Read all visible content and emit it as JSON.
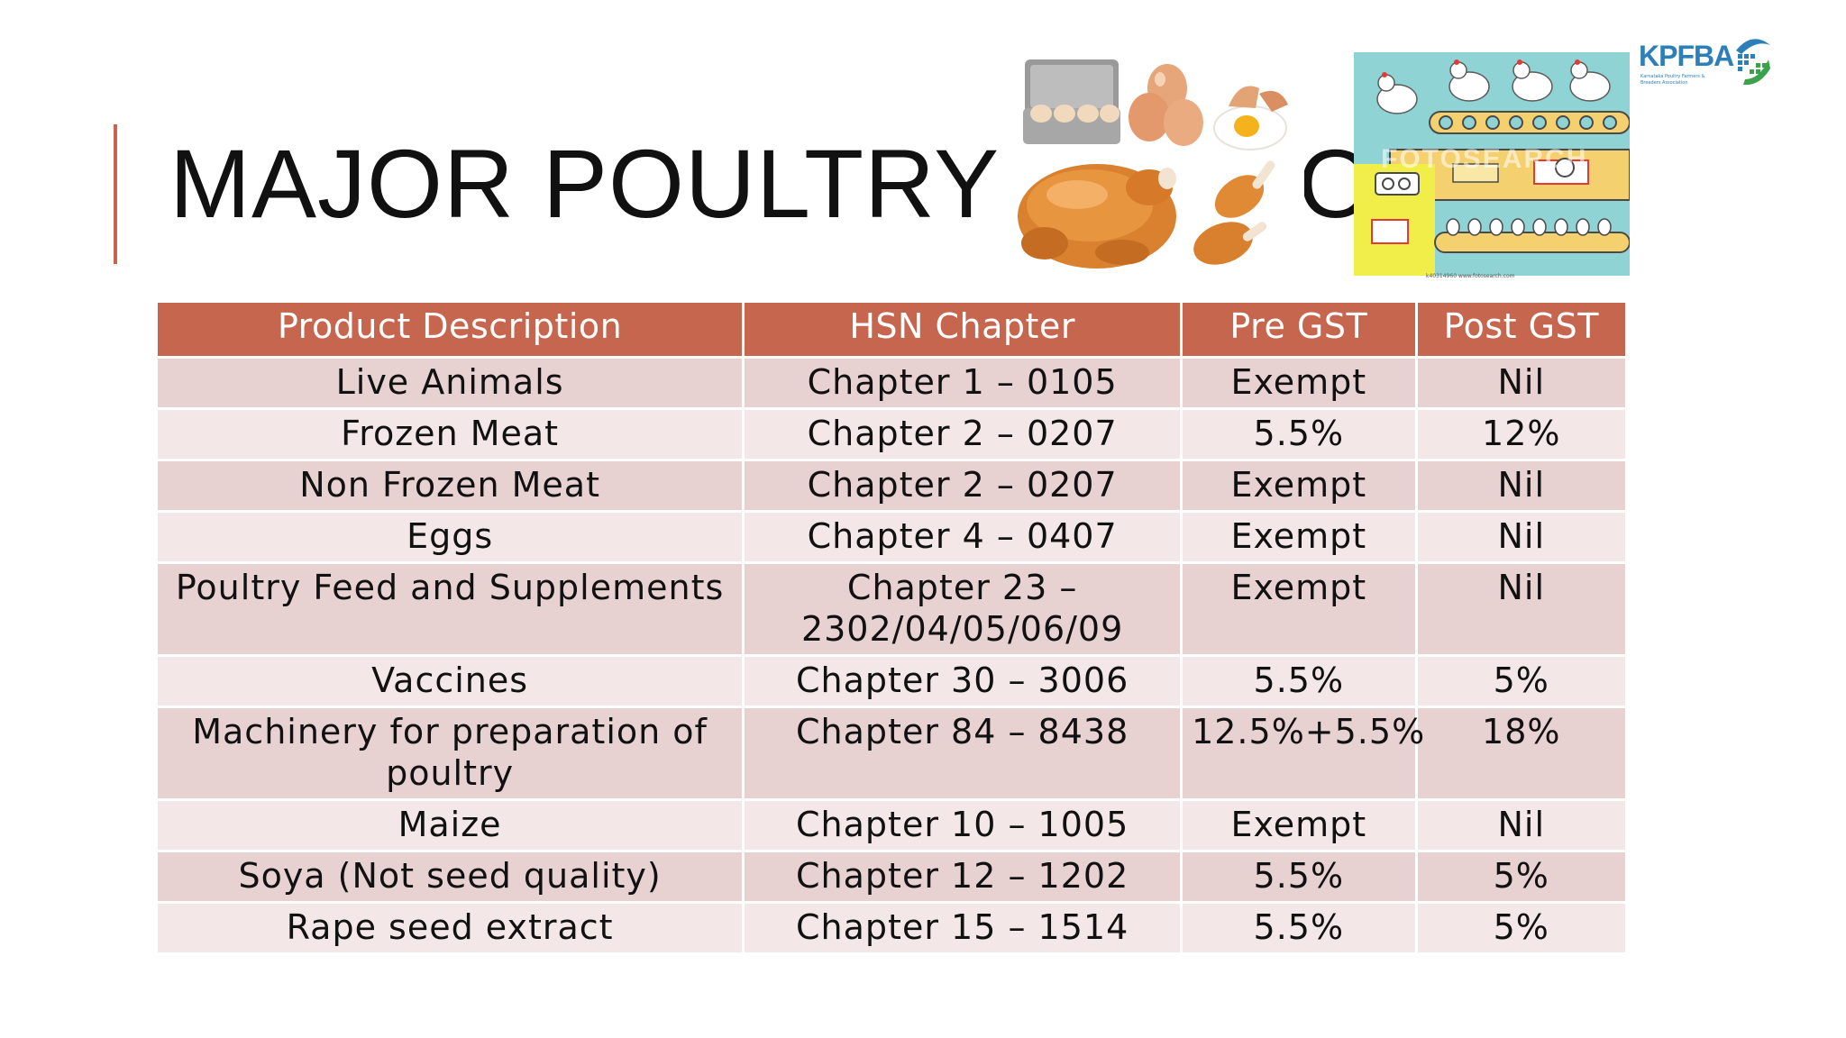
{
  "slide": {
    "title": "MAJOR POULTRY",
    "title_tail": "OU"
  },
  "logo": {
    "name": "KPFBA",
    "subtitle": "Karnataka Poultry Farmers & Breeders Association"
  },
  "factory_image": {
    "watermark": "FOTOSEARCH",
    "caption": "k40314960 www.fotosearch.com"
  },
  "colors": {
    "accent": "#c8654d",
    "header": "#c6664f",
    "row_odd": "#e8d1d1",
    "row_even": "#f3e7e7"
  },
  "table": {
    "headers": [
      "Product Description",
      "HSN Chapter",
      "Pre GST",
      "Post GST"
    ],
    "rows": [
      {
        "description": "Live Animals",
        "hsn": "Chapter 1 – 0105",
        "pre_gst": "Exempt",
        "post_gst": "Nil"
      },
      {
        "description": "Frozen Meat",
        "hsn": "Chapter 2 – 0207",
        "pre_gst": "5.5%",
        "post_gst": "12%"
      },
      {
        "description": "Non Frozen Meat",
        "hsn": "Chapter 2 – 0207",
        "pre_gst": "Exempt",
        "post_gst": "Nil"
      },
      {
        "description": "Eggs",
        "hsn": "Chapter 4 – 0407",
        "pre_gst": "Exempt",
        "post_gst": "Nil"
      },
      {
        "description": "Poultry Feed and Supplements",
        "hsn": "Chapter 23 – 2302/04/05/06/09",
        "pre_gst": "Exempt",
        "post_gst": "Nil"
      },
      {
        "description": "Vaccines",
        "hsn": "Chapter 30 – 3006",
        "pre_gst": "5.5%",
        "post_gst": "5%"
      },
      {
        "description": "Machinery for preparation of poultry",
        "hsn": "Chapter 84 – 8438",
        "pre_gst": "12.5%+5.5%",
        "post_gst": "18%"
      },
      {
        "description": "Maize",
        "hsn": "Chapter 10 – 1005",
        "pre_gst": "Exempt",
        "post_gst": "Nil"
      },
      {
        "description": "Soya (Not seed quality)",
        "hsn": "Chapter 12 – 1202",
        "pre_gst": "5.5%",
        "post_gst": "5%"
      },
      {
        "description": "Rape seed extract",
        "hsn": "Chapter 15 – 1514",
        "pre_gst": "5.5%",
        "post_gst": "5%"
      }
    ]
  }
}
